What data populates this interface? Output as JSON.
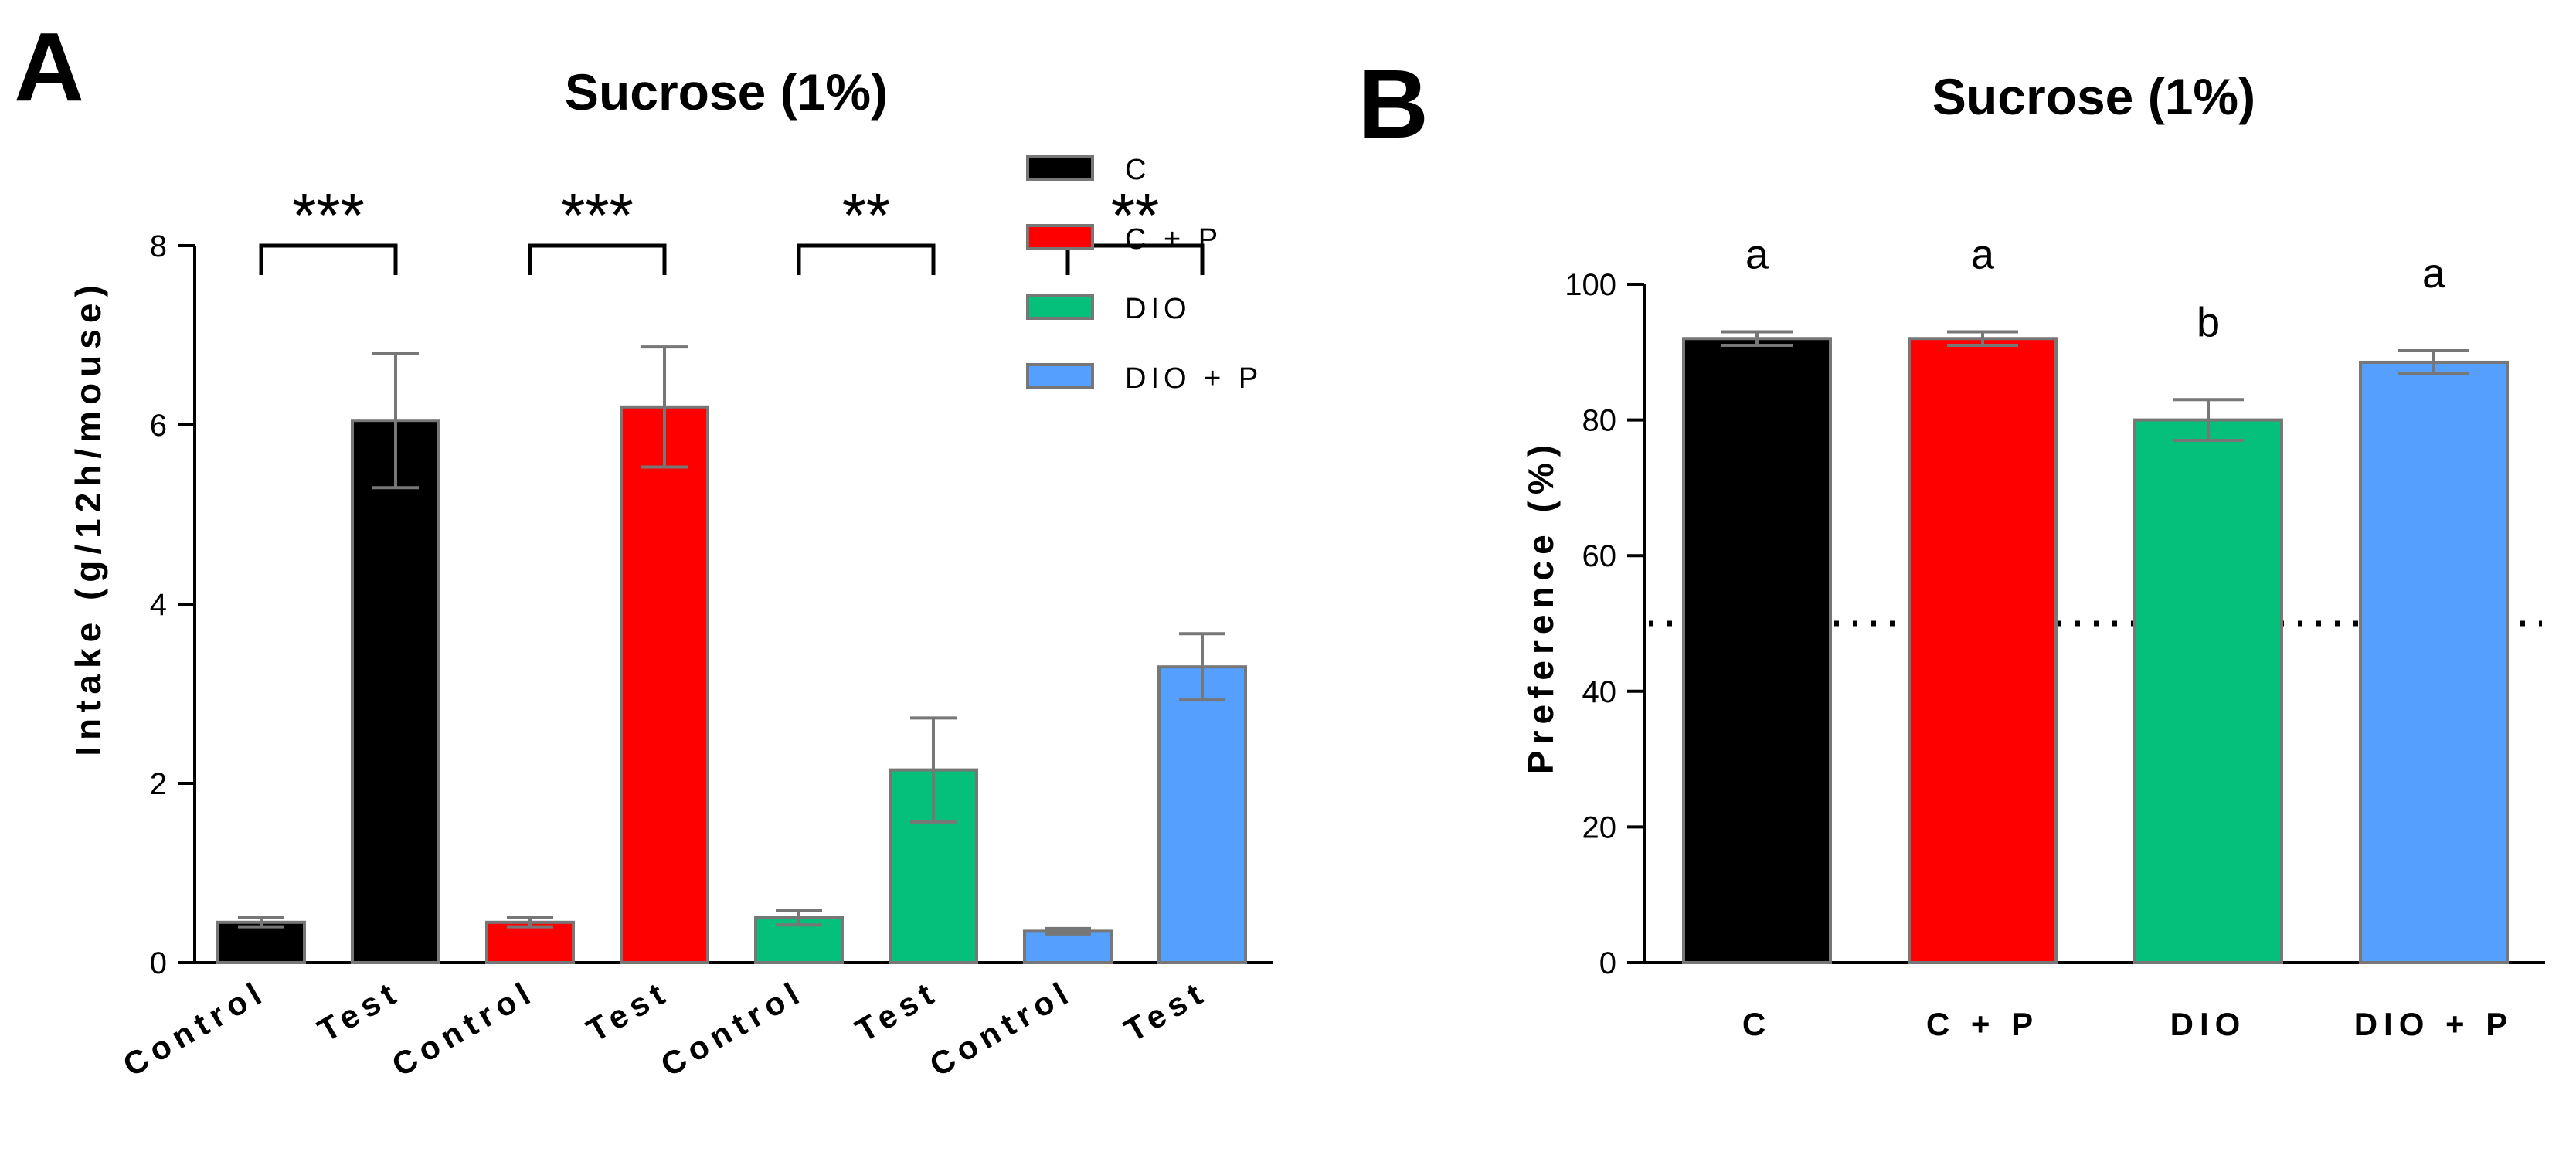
{
  "chart_data": [
    {
      "panel": "A",
      "type": "bar",
      "title": "Sucrose (1%)",
      "xlabel": "",
      "ylabel": "Intake (g/12h/mouse)",
      "ylim": [
        0,
        8
      ],
      "yticks": [
        "0",
        "2",
        "4",
        "6",
        "8"
      ],
      "categories": [
        "Control",
        "Test",
        "Control",
        "Test",
        "Control",
        "Test",
        "Control",
        "Test"
      ],
      "values": [
        0.45,
        6.05,
        0.45,
        6.2,
        0.5,
        2.15,
        0.35,
        3.3
      ],
      "errors": [
        0.05,
        0.75,
        0.05,
        0.67,
        0.08,
        0.58,
        0.03,
        0.37
      ],
      "bar_groups": [
        "C",
        "C",
        "C + P",
        "C + P",
        "DIO",
        "DIO",
        "DIO + P",
        "DIO + P"
      ],
      "legend": [
        {
          "label": "C",
          "color": "#000000"
        },
        {
          "label": "C + P",
          "color": "#ff0000"
        },
        {
          "label": "DIO",
          "color": "#05c07a"
        },
        {
          "label": "DIO + P",
          "color": "#55a0ff"
        }
      ],
      "significance": [
        {
          "from": 0,
          "to": 1,
          "label": "***"
        },
        {
          "from": 2,
          "to": 3,
          "label": "***"
        },
        {
          "from": 4,
          "to": 5,
          "label": "**"
        },
        {
          "from": 6,
          "to": 7,
          "label": "**"
        }
      ]
    },
    {
      "panel": "B",
      "type": "bar",
      "title": "Sucrose (1%)",
      "xlabel": "",
      "ylabel": "Preference (%)",
      "ylim": [
        0,
        100
      ],
      "yticks": [
        "0",
        "20",
        "40",
        "60",
        "80",
        "100"
      ],
      "categories": [
        "C",
        "C + P",
        "DIO",
        "DIO + P"
      ],
      "values": [
        92,
        92,
        80,
        88.5
      ],
      "errors": [
        1,
        1,
        3,
        1.7
      ],
      "colors": [
        "#000000",
        "#ff0000",
        "#05c07a",
        "#55a0ff"
      ],
      "annotations": [
        "a",
        "a",
        "b",
        "a"
      ],
      "reference_line": 50
    }
  ],
  "bar_edge_color": "#777777",
  "error_color": "#777777"
}
